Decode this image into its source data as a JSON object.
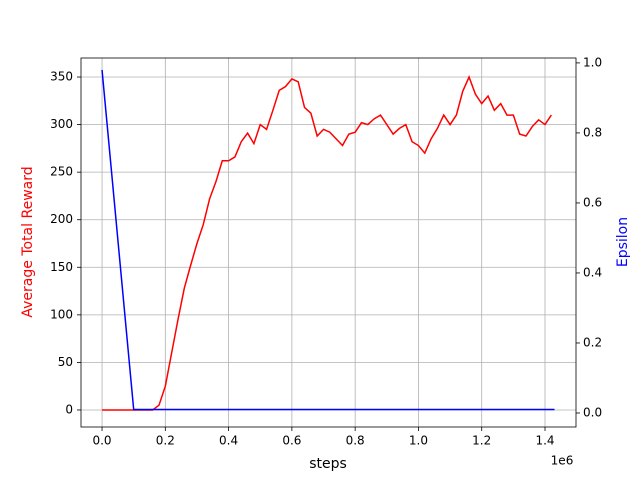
{
  "chart_data": {
    "type": "line",
    "xlabel": "steps",
    "ylabel": "Average Total Reward",
    "y2label": "Epsilon",
    "x_offset_label": "1e6",
    "ylabel_color": "red",
    "y2label_color": "blue",
    "grid": true,
    "xlim": [
      -66500,
      1498000
    ],
    "xticks": [
      {
        "value": 0,
        "label": "0.0"
      },
      {
        "value": 200000,
        "label": "0.2"
      },
      {
        "value": 400000,
        "label": "0.4"
      },
      {
        "value": 600000,
        "label": "0.6"
      },
      {
        "value": 800000,
        "label": "0.8"
      },
      {
        "value": 1000000,
        "label": "1.0"
      },
      {
        "value": 1200000,
        "label": "1.2"
      },
      {
        "value": 1400000,
        "label": "1.4"
      }
    ],
    "ylim": [
      -17.9,
      370
    ],
    "yticks": [
      0,
      50,
      100,
      150,
      200,
      250,
      300,
      350
    ],
    "y2lim": [
      -0.04,
      1.014
    ],
    "y2ticks": [
      {
        "value": 0,
        "label": "0.0"
      },
      {
        "value": 0.2,
        "label": "0.2"
      },
      {
        "value": 0.4,
        "label": "0.4"
      },
      {
        "value": 0.6,
        "label": "0.6"
      },
      {
        "value": 0.8,
        "label": "0.8"
      },
      {
        "value": 1,
        "label": "1.0"
      }
    ],
    "series": [
      {
        "name": "Average Total Reward",
        "color": "red",
        "x": [
          0,
          20000,
          40000,
          60000,
          80000,
          100000,
          120000,
          140000,
          160000,
          180000,
          200000,
          220000,
          240000,
          260000,
          280000,
          300000,
          320000,
          340000,
          360000,
          380000,
          400000,
          420000,
          440000,
          460000,
          480000,
          500000,
          520000,
          540000,
          560000,
          580000,
          600000,
          620000,
          640000,
          660000,
          680000,
          700000,
          720000,
          740000,
          760000,
          780000,
          800000,
          820000,
          840000,
          860000,
          880000,
          900000,
          920000,
          940000,
          960000,
          980000,
          1000000,
          1020000,
          1040000,
          1060000,
          1080000,
          1100000,
          1120000,
          1140000,
          1160000,
          1180000,
          1200000,
          1220000,
          1240000,
          1260000,
          1280000,
          1300000,
          1320000,
          1340000,
          1360000,
          1380000,
          1400000,
          1420000
        ],
        "values": [
          0,
          0,
          0,
          0,
          0,
          0,
          0,
          0,
          0,
          5,
          25,
          60,
          95,
          128,
          152,
          175,
          195,
          222,
          240,
          262,
          262,
          266,
          282,
          291,
          280,
          300,
          295,
          315,
          336,
          340,
          348,
          345,
          318,
          312,
          288,
          295,
          292,
          285,
          278,
          290,
          292,
          302,
          300,
          306,
          310,
          300,
          290,
          296,
          300,
          282,
          278,
          270,
          285,
          296,
          310,
          300,
          310,
          335,
          350,
          332,
          322,
          330,
          315,
          322,
          310,
          310,
          290,
          288,
          298,
          305,
          300,
          310
        ]
      },
      {
        "name": "Epsilon",
        "color": "blue",
        "axis": "y2",
        "x": [
          0,
          100000,
          1430000
        ],
        "values": [
          0.98,
          0.01,
          0.01
        ]
      }
    ]
  }
}
